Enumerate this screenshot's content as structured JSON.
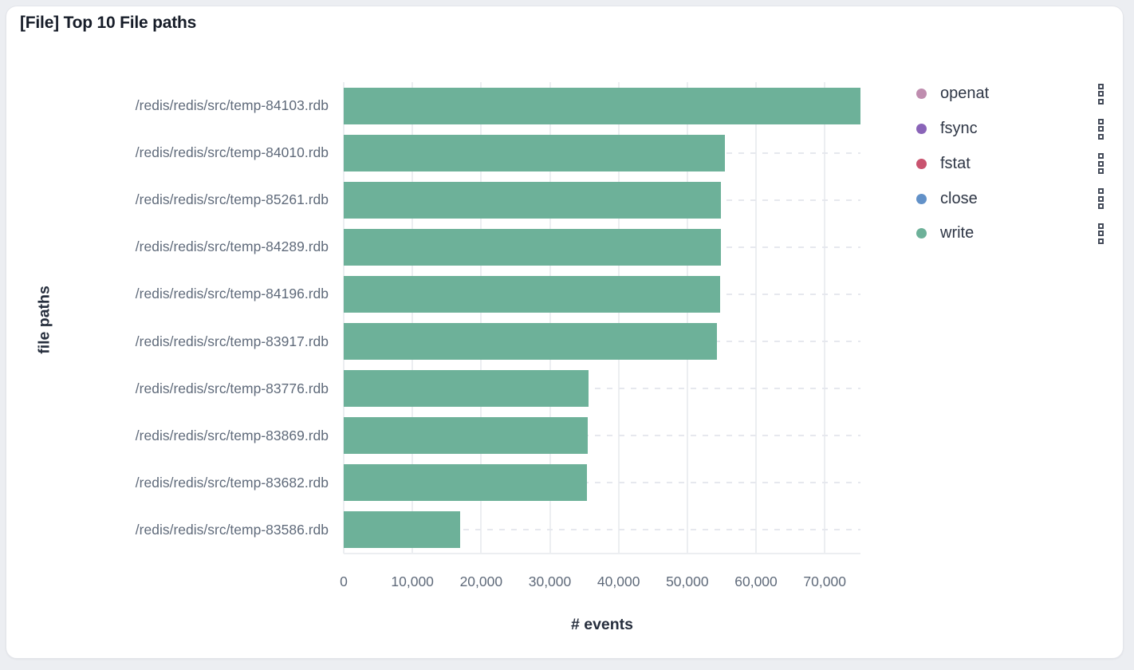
{
  "panel": {
    "title": "[File] Top 10 File paths"
  },
  "chart_data": {
    "type": "bar",
    "orientation": "horizontal",
    "title": "[File] Top 10 File paths",
    "xlabel": "# events",
    "ylabel": "file paths",
    "series_name": "write",
    "bar_color": "#6DB199",
    "grid": true,
    "xlim": [
      0,
      75200
    ],
    "categories": [
      "/redis/redis/src/temp-84103.rdb",
      "/redis/redis/src/temp-84010.rdb",
      "/redis/redis/src/temp-85261.rdb",
      "/redis/redis/src/temp-84289.rdb",
      "/redis/redis/src/temp-84196.rdb",
      "/redis/redis/src/temp-83917.rdb",
      "/redis/redis/src/temp-83776.rdb",
      "/redis/redis/src/temp-83869.rdb",
      "/redis/redis/src/temp-83682.rdb",
      "/redis/redis/src/temp-83586.rdb"
    ],
    "values": [
      75200,
      55500,
      54900,
      54900,
      54800,
      54300,
      35600,
      35500,
      35400,
      17000
    ],
    "x_ticks": [
      {
        "label": "0",
        "value": 0
      },
      {
        "label": "10,000",
        "value": 10000
      },
      {
        "label": "20,000",
        "value": 20000
      },
      {
        "label": "30,000",
        "value": 30000
      },
      {
        "label": "40,000",
        "value": 40000
      },
      {
        "label": "50,000",
        "value": 50000
      },
      {
        "label": "60,000",
        "value": 60000
      },
      {
        "label": "70,000",
        "value": 70000
      }
    ]
  },
  "legend": {
    "position": "right",
    "items": [
      {
        "label": "openat",
        "color": "#BF8DAF"
      },
      {
        "label": "fsync",
        "color": "#8A64B8"
      },
      {
        "label": "fstat",
        "color": "#C9536F"
      },
      {
        "label": "close",
        "color": "#6291C8"
      },
      {
        "label": "write",
        "color": "#6DB199"
      }
    ]
  },
  "colors": {
    "page_bg": "#eceef2",
    "card_bg": "#ffffff",
    "grid_line": "#eceef1",
    "dash_line": "#e6e8ee",
    "tick_text": "#5f6a7a",
    "title_text": "#161c28"
  }
}
